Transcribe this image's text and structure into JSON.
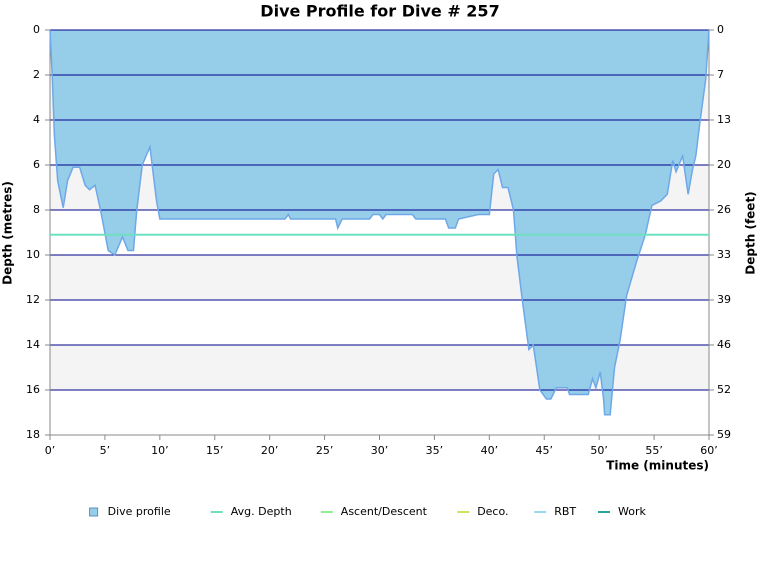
{
  "chart_data": {
    "type": "area",
    "title": "Dive Profile for Dive # 257",
    "y_label": "Depth (metres)",
    "y2_label": "Depth (feet)",
    "x_label": "Time (minutes)",
    "y_inverted": true,
    "xlim": [
      0,
      60
    ],
    "xticks": [
      {
        "value": 0,
        "label": "0’"
      },
      {
        "value": 5,
        "label": "5’"
      },
      {
        "value": 10,
        "label": "10’"
      },
      {
        "value": 15,
        "label": "15’"
      },
      {
        "value": 20,
        "label": "20’"
      },
      {
        "value": 25,
        "label": "25’"
      },
      {
        "value": 30,
        "label": "30’"
      },
      {
        "value": 35,
        "label": "35’"
      },
      {
        "value": 40,
        "label": "40’"
      },
      {
        "value": 45,
        "label": "45’"
      },
      {
        "value": 50,
        "label": "50’"
      },
      {
        "value": 55,
        "label": "55’"
      },
      {
        "value": 60,
        "label": "60’"
      }
    ],
    "ylim": [
      0,
      18
    ],
    "yticks": [
      0,
      2,
      4,
      6,
      8,
      10,
      12,
      14,
      16,
      18
    ],
    "y2lim": [
      0,
      59.06
    ],
    "y2ticks": [
      0,
      {
        "value": 6.56,
        "label": "7"
      },
      {
        "value": 13.12,
        "label": "13"
      },
      {
        "value": 19.69,
        "label": "20"
      },
      {
        "value": 26.25,
        "label": "26"
      },
      {
        "value": 32.81,
        "label": "33"
      },
      {
        "value": 39.37,
        "label": "39"
      },
      {
        "value": 45.93,
        "label": "46"
      },
      {
        "value": 52.49,
        "label": "52"
      },
      {
        "value": 59.06,
        "label": "59"
      }
    ],
    "grid": true,
    "grid_color": "#00008b",
    "band_color": "#f4f4f4",
    "legend": "bottom",
    "series": [
      {
        "name": "Dive profile",
        "color": "#96cde8",
        "line_color": "#6fa8e8",
        "kind": "area",
        "x": [
          0,
          0.2,
          0.4,
          0.7,
          1.2,
          1.6,
          2.1,
          2.7,
          3.2,
          3.6,
          4.1,
          4.6,
          5.3,
          5.9,
          6.6,
          7.1,
          7.6,
          7.9,
          8.4,
          9.1,
          9.7,
          10,
          21.4,
          21.7,
          21.9,
          26,
          26.2,
          26.6,
          29.1,
          29.4,
          30,
          30.3,
          30.6,
          33,
          33.3,
          33.6,
          36,
          36.3,
          36.9,
          37.2,
          39,
          40,
          40.4,
          40.8,
          41.2,
          41.7,
          42.2,
          42.5,
          43,
          43.6,
          44,
          44.6,
          45.2,
          45.6,
          46.1,
          47.1,
          47.3,
          49,
          49.4,
          49.7,
          50.1,
          50.4,
          50.5,
          51,
          51.4,
          51.9,
          52.5,
          53.4,
          54.2,
          54.8,
          55.6,
          56.2,
          56.7,
          57,
          57.6,
          58.1,
          58.5,
          58.8,
          59.2,
          59.7,
          60
        ],
        "values": [
          0,
          2,
          4.7,
          6.7,
          7.9,
          6.7,
          6.1,
          6.1,
          6.9,
          7.1,
          6.9,
          8,
          9.8,
          10,
          9.2,
          9.8,
          9.8,
          8,
          6,
          5.2,
          7.6,
          8.4,
          8.4,
          8.2,
          8.4,
          8.4,
          8.8,
          8.4,
          8.4,
          8.2,
          8.2,
          8.4,
          8.2,
          8.2,
          8.4,
          8.4,
          8.4,
          8.8,
          8.8,
          8.4,
          8.2,
          8.2,
          6.4,
          6.2,
          7,
          7,
          8,
          10,
          12,
          14.2,
          14,
          16,
          16.4,
          16.4,
          15.9,
          15.9,
          16.2,
          16.2,
          15.5,
          15.9,
          15.2,
          16.4,
          17.1,
          17.1,
          15,
          13.8,
          11.8,
          10.3,
          9.1,
          7.8,
          7.6,
          7.3,
          5.8,
          6.3,
          5.6,
          7.3,
          6.2,
          5.6,
          4,
          2.2,
          0
        ]
      },
      {
        "name": "Avg. Depth",
        "color": "#6ee0c0",
        "kind": "line",
        "x": [
          0,
          60
        ],
        "values": [
          9.1,
          9.1
        ]
      },
      {
        "name": "Ascent/Descent",
        "color": "#90ee90",
        "kind": "line"
      },
      {
        "name": "Deco.",
        "color": "#d4e157",
        "kind": "line"
      },
      {
        "name": "RBT",
        "color": "#9ad8f0",
        "kind": "line"
      },
      {
        "name": "Work",
        "color": "#26a69a",
        "kind": "line"
      }
    ]
  }
}
